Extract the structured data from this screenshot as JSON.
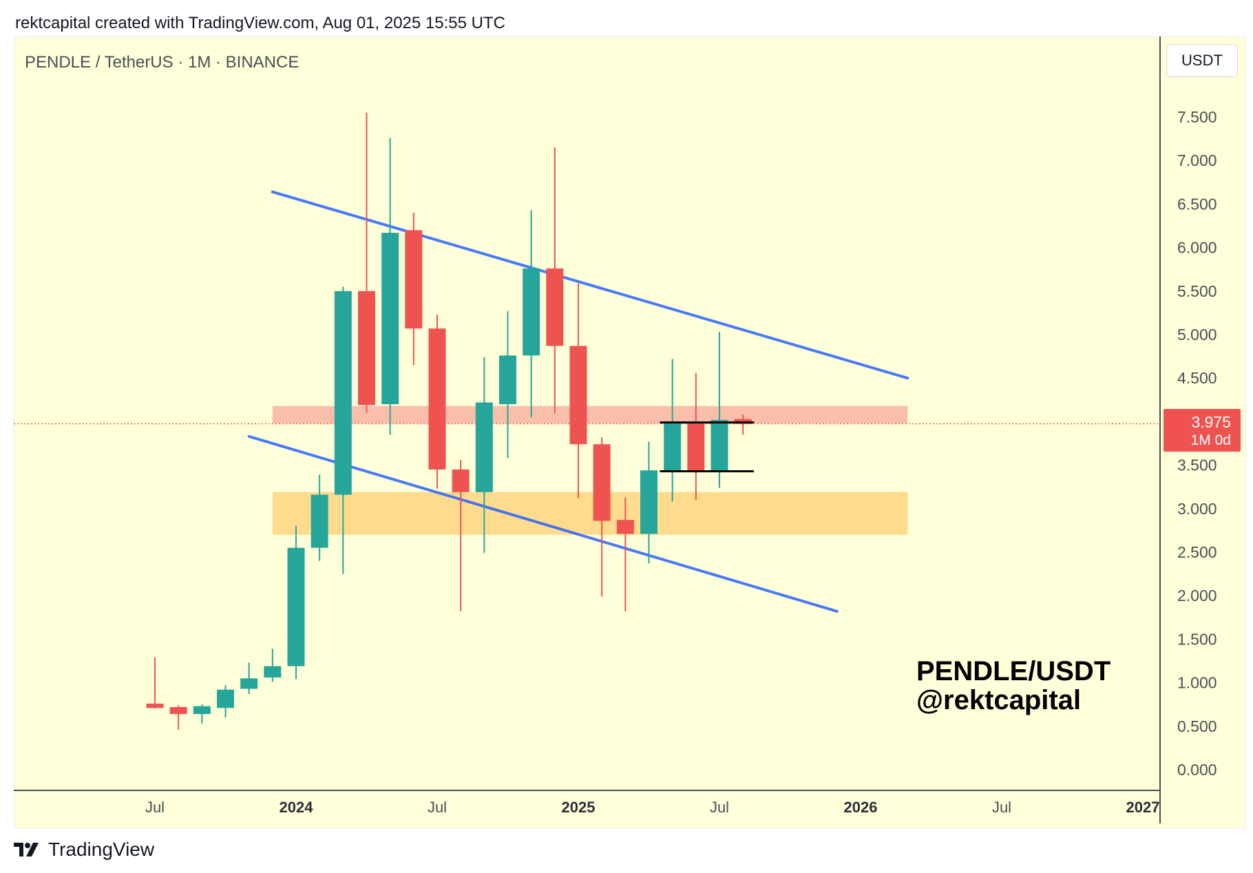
{
  "header": {
    "attribution": "rektcapital created with TradingView.com, Aug 01, 2025 15:55 UTC"
  },
  "chart_header": {
    "symbol": "PENDLE / TetherUS · 1M · BINANCE",
    "currency": "USDT"
  },
  "price_badge": {
    "value": "3.975",
    "timer": "1M 0d"
  },
  "annotation": {
    "line1": "PENDLE/USDT",
    "line2": "@rektcapital"
  },
  "footer": {
    "brand": "TradingView"
  },
  "colors": {
    "background": "#ffffd9",
    "bull": "#26a69a",
    "bear": "#ef5350",
    "trendline": "#2962ff",
    "resistance_zone": "#f8a99a",
    "support_zone": "#ffd27a"
  },
  "chart_data": {
    "type": "candlestick",
    "title": "PENDLE / TetherUS · 1M · BINANCE",
    "timeframe": "1M",
    "exchange": "BINANCE",
    "y_axis": {
      "min": 0,
      "max": 7.5,
      "ticks": [
        "0.000",
        "0.500",
        "1.000",
        "1.500",
        "2.000",
        "2.500",
        "3.000",
        "3.500",
        "4.000",
        "4.500",
        "5.000",
        "5.500",
        "6.000",
        "6.500",
        "7.000",
        "7.500"
      ],
      "side": "right"
    },
    "x_axis": {
      "ticks": [
        {
          "label": "Jul",
          "date": "2023-07-01",
          "bold": false
        },
        {
          "label": "2024",
          "date": "2024-01-01",
          "bold": true
        },
        {
          "label": "Jul",
          "date": "2024-07-01",
          "bold": false
        },
        {
          "label": "2025",
          "date": "2025-01-01",
          "bold": true
        },
        {
          "label": "Jul",
          "date": "2025-07-01",
          "bold": false
        },
        {
          "label": "2026",
          "date": "2026-01-01",
          "bold": true
        },
        {
          "label": "Jul",
          "date": "2026-07-01",
          "bold": false
        },
        {
          "label": "2027",
          "date": "2027-01-01",
          "bold": true
        }
      ]
    },
    "candles": [
      {
        "date": "2023-07-01",
        "open": 0.76,
        "high": 1.29,
        "low": 0.7,
        "close": 0.71
      },
      {
        "date": "2023-08-01",
        "open": 0.72,
        "high": 0.74,
        "low": 0.46,
        "close": 0.64
      },
      {
        "date": "2023-09-01",
        "open": 0.64,
        "high": 0.75,
        "low": 0.53,
        "close": 0.73
      },
      {
        "date": "2023-10-01",
        "open": 0.71,
        "high": 0.97,
        "low": 0.6,
        "close": 0.92
      },
      {
        "date": "2023-11-01",
        "open": 0.93,
        "high": 1.23,
        "low": 0.87,
        "close": 1.05
      },
      {
        "date": "2023-12-01",
        "open": 1.06,
        "high": 1.39,
        "low": 1.01,
        "close": 1.19
      },
      {
        "date": "2024-01-01",
        "open": 1.19,
        "high": 2.8,
        "low": 1.04,
        "close": 2.55
      },
      {
        "date": "2024-02-01",
        "open": 2.55,
        "high": 3.39,
        "low": 2.4,
        "close": 3.16
      },
      {
        "date": "2024-03-01",
        "open": 3.16,
        "high": 5.55,
        "low": 2.25,
        "close": 5.5
      },
      {
        "date": "2024-04-01",
        "open": 5.5,
        "high": 7.55,
        "low": 4.1,
        "close": 4.19
      },
      {
        "date": "2024-05-01",
        "open": 4.2,
        "high": 7.26,
        "low": 3.85,
        "close": 6.17
      },
      {
        "date": "2024-06-01",
        "open": 6.2,
        "high": 6.4,
        "low": 4.65,
        "close": 5.07
      },
      {
        "date": "2024-07-01",
        "open": 5.07,
        "high": 5.23,
        "low": 3.23,
        "close": 3.45
      },
      {
        "date": "2024-08-01",
        "open": 3.45,
        "high": 3.56,
        "low": 1.82,
        "close": 3.19
      },
      {
        "date": "2024-09-01",
        "open": 3.19,
        "high": 4.74,
        "low": 2.49,
        "close": 4.22
      },
      {
        "date": "2024-10-01",
        "open": 4.2,
        "high": 5.27,
        "low": 3.58,
        "close": 4.76
      },
      {
        "date": "2024-11-01",
        "open": 4.76,
        "high": 6.43,
        "low": 4.05,
        "close": 5.76
      },
      {
        "date": "2024-12-01",
        "open": 5.76,
        "high": 7.15,
        "low": 4.1,
        "close": 4.87
      },
      {
        "date": "2025-01-01",
        "open": 4.87,
        "high": 5.59,
        "low": 3.12,
        "close": 3.74
      },
      {
        "date": "2025-02-01",
        "open": 3.74,
        "high": 3.82,
        "low": 1.99,
        "close": 2.86
      },
      {
        "date": "2025-03-01",
        "open": 2.87,
        "high": 3.13,
        "low": 1.82,
        "close": 2.71
      },
      {
        "date": "2025-04-01",
        "open": 2.71,
        "high": 3.77,
        "low": 2.37,
        "close": 3.44
      },
      {
        "date": "2025-05-01",
        "open": 3.44,
        "high": 4.72,
        "low": 3.08,
        "close": 3.99
      },
      {
        "date": "2025-06-01",
        "open": 3.99,
        "high": 4.56,
        "low": 3.1,
        "close": 3.44
      },
      {
        "date": "2025-07-01",
        "open": 3.44,
        "high": 5.03,
        "low": 3.24,
        "close": 4.02
      },
      {
        "date": "2025-08-01",
        "open": 4.03,
        "high": 4.08,
        "low": 3.85,
        "close": 3.975
      }
    ],
    "zones": [
      {
        "name": "resistance",
        "from_date": "2023-12-01",
        "to_date": "2026-03-01",
        "low": 3.98,
        "high": 4.18,
        "color": "#f8a99a"
      },
      {
        "name": "support",
        "from_date": "2023-12-01",
        "to_date": "2026-03-01",
        "low": 2.7,
        "high": 3.19,
        "color": "#ffd27a"
      }
    ],
    "trendlines": [
      {
        "name": "upper",
        "from": {
          "date": "2023-12-01",
          "value": 6.64
        },
        "to": {
          "date": "2026-03-01",
          "value": 4.5
        },
        "color": "#2962ff"
      },
      {
        "name": "lower",
        "from": {
          "date": "2023-11-01",
          "value": 3.83
        },
        "to": {
          "date": "2025-12-01",
          "value": 1.82
        },
        "color": "#2962ff"
      }
    ],
    "range_lines": [
      {
        "name": "range-high",
        "from_date": "2025-04-15",
        "to_date": "2025-08-15",
        "value": 3.99,
        "color": "#000000"
      },
      {
        "name": "range-low",
        "from_date": "2025-04-15",
        "to_date": "2025-08-15",
        "value": 3.43,
        "color": "#000000"
      }
    ],
    "last_price": 3.975,
    "grid": false
  }
}
